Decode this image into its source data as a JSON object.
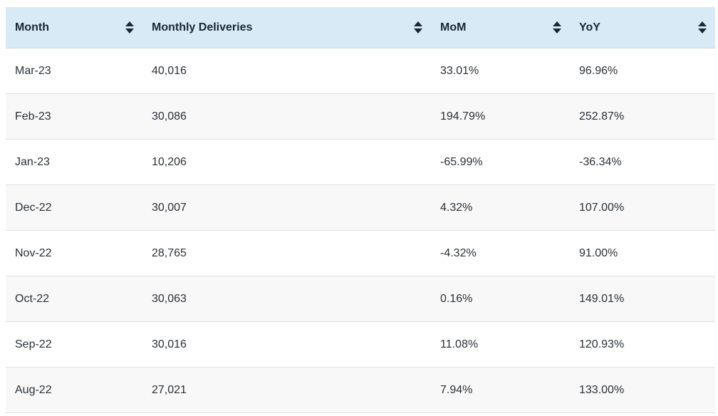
{
  "table": {
    "columns": [
      {
        "key": "month",
        "label": "Month"
      },
      {
        "key": "monthly_deliveries",
        "label": "Monthly Deliveries"
      },
      {
        "key": "mom",
        "label": "MoM"
      },
      {
        "key": "yoy",
        "label": "YoY"
      }
    ],
    "rows": [
      [
        "Mar-23",
        "40,016",
        "33.01%",
        "96.96%"
      ],
      [
        "Feb-23",
        "30,086",
        "194.79%",
        "252.87%"
      ],
      [
        "Jan-23",
        "10,206",
        "-65.99%",
        "-36.34%"
      ],
      [
        "Dec-22",
        "30,007",
        "4.32%",
        "107.00%"
      ],
      [
        "Nov-22",
        "28,765",
        "-4.32%",
        "91.00%"
      ],
      [
        "Oct-22",
        "30,063",
        "0.16%",
        "149.01%"
      ],
      [
        "Sep-22",
        "30,016",
        "11.08%",
        "120.93%"
      ],
      [
        "Aug-22",
        "27,021",
        "7.94%",
        "133.00%"
      ]
    ],
    "sort_icon": "sort-up-down-arrows"
  },
  "colors": {
    "header_background": "#d7eaf6",
    "header_text": "#1a2734",
    "body_text": "#2b3035",
    "row_stripe": "#f8f8f9",
    "row_divider": "#e2e2e2"
  },
  "chart_data": {
    "type": "table",
    "columns": [
      "Month",
      "Monthly Deliveries",
      "MoM",
      "YoY"
    ],
    "rows": [
      [
        "Mar-23",
        40016,
        "33.01%",
        "96.96%"
      ],
      [
        "Feb-23",
        30086,
        "194.79%",
        "252.87%"
      ],
      [
        "Jan-23",
        10206,
        "-65.99%",
        "-36.34%"
      ],
      [
        "Dec-22",
        30007,
        "4.32%",
        "107.00%"
      ],
      [
        "Nov-22",
        28765,
        "-4.32%",
        "91.00%"
      ],
      [
        "Oct-22",
        30063,
        "0.16%",
        "149.01%"
      ],
      [
        "Sep-22",
        30016,
        "11.08%",
        "120.93%"
      ],
      [
        "Aug-22",
        27021,
        "7.94%",
        "133.00%"
      ]
    ]
  }
}
